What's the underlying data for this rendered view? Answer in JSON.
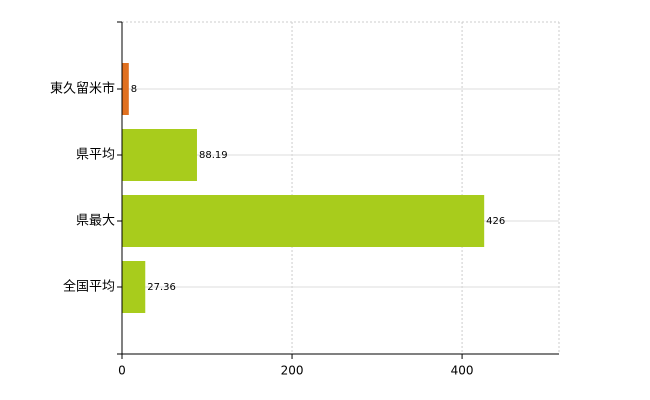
{
  "chart_data": {
    "type": "hbar",
    "categories": [
      "東久留米市",
      "県平均",
      "県最大",
      "全国平均"
    ],
    "values": [
      8,
      88.19,
      426,
      27.36
    ],
    "colors": [
      "#e07020",
      "#a8cc1c",
      "#a8cc1c",
      "#a8cc1c"
    ],
    "xlim": [
      0,
      514
    ],
    "xticks": [
      0,
      200,
      400
    ],
    "grid": true
  }
}
